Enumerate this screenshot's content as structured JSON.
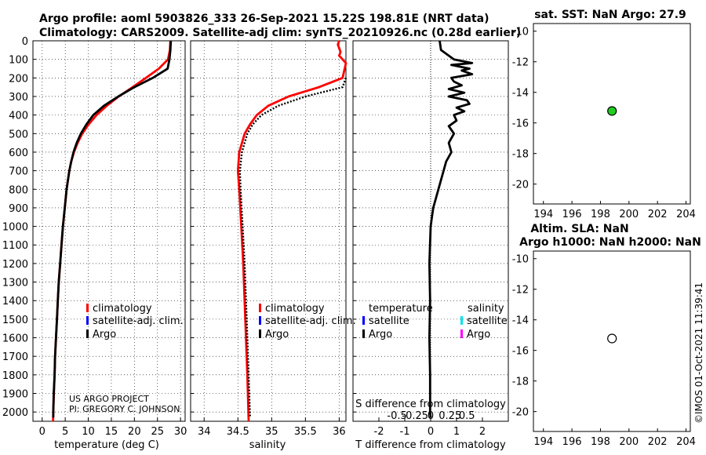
{
  "header": {
    "title_line1": "Argo profile: aoml 5903826_333 26-Sep-2021 15.22S 198.81E (NRT data)",
    "title_line2": "Climatology: CARS2009. Satellite-adj clim: synTS_20210926.nc (0.28d earlier)"
  },
  "watermark": "©IMOS 01-Oct-2021 11:39:41",
  "credit": {
    "line1": "US ARGO PROJECT",
    "line2": "PI: GREGORY C. JOHNSON"
  },
  "colors": {
    "climatology": "#ff0000",
    "satellite_t": "#0000ff",
    "argo": "#000000",
    "satellite_s": "#00e5ee",
    "argo_s": "#ff00ff",
    "sst_marker": "#22cc22"
  },
  "legend_main": {
    "climatology": "climatology",
    "satellite": "satellite-adj. clim.",
    "argo": "Argo"
  },
  "legend_salinity": {
    "climatology": "climatology",
    "satellite": "satellite-adj. clim.",
    "argo": "Argo"
  },
  "legend_diff": {
    "temperature_head": "temperature",
    "salinity_head": "salinity",
    "t_satellite": "satellite",
    "t_argo": "Argo",
    "s_satellite": "satellite",
    "s_argo": "Argo"
  },
  "chart_data": [
    {
      "id": "temperature",
      "type": "line",
      "xlabel": "temperature (deg C)",
      "ylabel": "",
      "xlim": [
        -2,
        31
      ],
      "ylim": [
        2050,
        0
      ],
      "xticks": [
        0,
        5,
        10,
        15,
        20,
        25,
        30
      ],
      "yticks": [
        0,
        100,
        200,
        300,
        400,
        500,
        600,
        700,
        800,
        900,
        1000,
        1100,
        1200,
        1300,
        1400,
        1500,
        1600,
        1700,
        1800,
        1900,
        2000
      ],
      "series": [
        {
          "name": "climatology",
          "color": "#ff0000",
          "depth": [
            0,
            50,
            100,
            150,
            200,
            250,
            300,
            350,
            400,
            450,
            500,
            550,
            600,
            650,
            700,
            800,
            900,
            1000,
            1100,
            1200,
            1300,
            1400,
            1500,
            1600,
            1700,
            1800,
            1900,
            2000,
            2050
          ],
          "values": [
            27.8,
            27.7,
            27.3,
            25.3,
            22.5,
            19.6,
            16.6,
            14.0,
            11.8,
            10.1,
            8.7,
            7.7,
            6.9,
            6.3,
            5.9,
            5.3,
            4.9,
            4.5,
            4.2,
            3.9,
            3.6,
            3.4,
            3.2,
            3.0,
            2.8,
            2.7,
            2.55,
            2.4,
            2.35
          ]
        },
        {
          "name": "Argo",
          "color": "#000000",
          "depth": [
            0,
            50,
            100,
            150,
            200,
            250,
            300,
            350,
            400,
            450,
            500,
            550,
            600,
            650,
            700,
            800,
            900,
            1000,
            1100,
            1200,
            1300,
            1400,
            1500,
            1600,
            1700,
            1800,
            1900,
            2000,
            2030
          ],
          "values": [
            27.9,
            27.8,
            27.6,
            27.2,
            24.0,
            20.0,
            16.5,
            13.4,
            11.1,
            9.6,
            8.4,
            7.5,
            6.8,
            6.3,
            5.9,
            5.3,
            4.9,
            4.5,
            4.2,
            3.9,
            3.6,
            3.4,
            3.2,
            3.0,
            2.8,
            2.7,
            2.5,
            2.4,
            2.4
          ]
        }
      ]
    },
    {
      "id": "salinity",
      "type": "line",
      "xlabel": "salinity",
      "ylabel": "",
      "xlim": [
        33.8,
        36.1
      ],
      "ylim": [
        2050,
        0
      ],
      "xticks": [
        34,
        34.5,
        35,
        35.5,
        36
      ],
      "series": [
        {
          "name": "climatology",
          "color": "#ff0000",
          "depth": [
            0,
            20,
            40,
            60,
            80,
            100,
            120,
            200,
            250,
            300,
            350,
            400,
            450,
            500,
            600,
            700,
            800,
            1000,
            1200,
            1500,
            1800,
            2050
          ],
          "values": [
            36.0,
            35.98,
            36.0,
            36.02,
            36.0,
            36.05,
            36.1,
            36.05,
            35.7,
            35.25,
            34.95,
            34.78,
            34.68,
            34.6,
            34.52,
            34.5,
            34.52,
            34.55,
            34.58,
            34.61,
            34.64,
            34.66
          ]
        },
        {
          "name": "Argo",
          "color": "#000000",
          "depth": [
            200,
            250,
            300,
            350,
            400,
            450,
            500,
            600,
            700,
            800,
            1000,
            1200,
            1500,
            1800,
            2030
          ],
          "values": [
            36.1,
            36.05,
            35.5,
            35.1,
            34.85,
            34.72,
            34.64,
            34.56,
            34.53,
            34.54,
            34.57,
            34.6,
            34.63,
            34.66,
            34.68
          ]
        }
      ]
    },
    {
      "id": "difference",
      "type": "line",
      "xlabel": "T difference from climatology",
      "xlabel_top": "S difference from climatology",
      "xlim": [
        -3.0,
        3.0
      ],
      "ylim": [
        2050,
        0
      ],
      "xticks": [
        -2,
        -1,
        0,
        1,
        2
      ],
      "xticks_top": [
        "-0.5",
        "-0.25",
        "0",
        "0.25",
        "0.5"
      ],
      "series": [
        {
          "name": "T difference (Argo)",
          "color": "#000000",
          "depth": [
            0,
            50,
            100,
            120,
            130,
            150,
            160,
            180,
            200,
            220,
            240,
            260,
            280,
            300,
            320,
            340,
            360,
            380,
            400,
            430,
            460,
            500,
            550,
            600,
            650,
            700,
            750,
            800,
            850,
            900,
            950,
            1000,
            1200,
            1400,
            1600,
            1800,
            2000,
            2030
          ],
          "values": [
            0.35,
            0.4,
            0.9,
            1.6,
            0.8,
            1.5,
            1.2,
            1.6,
            0.8,
            0.9,
            1.2,
            0.7,
            1.3,
            0.7,
            1.4,
            1.5,
            1.0,
            1.3,
            0.9,
            1.0,
            0.7,
            0.9,
            0.7,
            0.8,
            0.6,
            0.5,
            0.4,
            0.3,
            0.2,
            0.1,
            0.05,
            0.0,
            -0.05,
            -0.02,
            -0.05,
            -0.02,
            -0.02,
            0.0
          ]
        }
      ]
    },
    {
      "id": "sst",
      "type": "scatter",
      "title": "sat. SST: NaN Argo: 27.9",
      "xlim": [
        193.3,
        204.3
      ],
      "ylim": [
        -21.3,
        -9.5
      ],
      "xticks": [
        194,
        196,
        198,
        200,
        202,
        204
      ],
      "yticks": [
        -10,
        -12,
        -14,
        -16,
        -18,
        -20
      ],
      "points": [
        {
          "x": 198.81,
          "y": -15.22,
          "color": "#22cc22"
        }
      ]
    },
    {
      "id": "sla",
      "type": "scatter",
      "title_line1": "Altim. SLA: NaN",
      "title_line2": "Argo h1000: NaN h2000: NaN",
      "xlim": [
        193.3,
        204.3
      ],
      "ylim": [
        -21.3,
        -9.5
      ],
      "xticks": [
        194,
        196,
        198,
        200,
        202,
        204
      ],
      "yticks": [
        -10,
        -12,
        -14,
        -16,
        -18,
        -20
      ],
      "points": [
        {
          "x": 198.81,
          "y": -15.22,
          "color": "#ffffff"
        }
      ]
    }
  ]
}
